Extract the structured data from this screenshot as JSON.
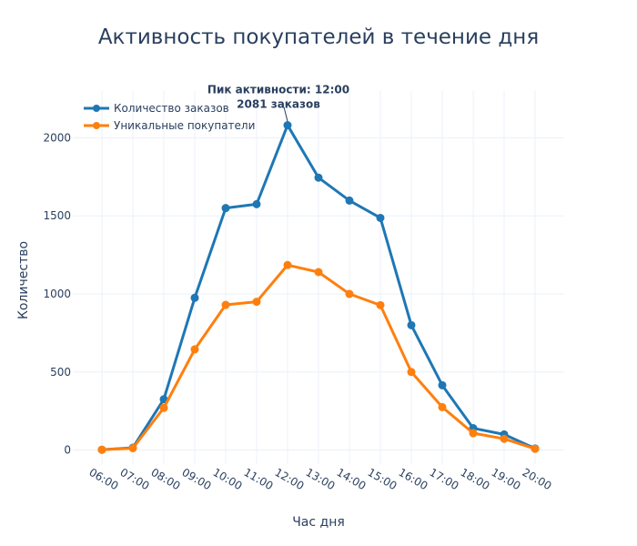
{
  "chart_data": {
    "type": "line",
    "title": "Активность покупателей в течение дня",
    "xlabel": "Час дня",
    "ylabel": "Количество",
    "categories": [
      "06:00",
      "07:00",
      "08:00",
      "09:00",
      "10:00",
      "11:00",
      "12:00",
      "13:00",
      "14:00",
      "15:00",
      "16:00",
      "17:00",
      "18:00",
      "19:00",
      "20:00"
    ],
    "ylim": [
      -90,
      2300
    ],
    "yticks": [
      0,
      500,
      1000,
      1500,
      2000
    ],
    "grid": true,
    "legend_position": "top-left",
    "series": [
      {
        "name": "Количество заказов",
        "color": "#1f77b4",
        "values": [
          2,
          15,
          325,
          975,
          1550,
          1575,
          2081,
          1745,
          1598,
          1487,
          800,
          415,
          140,
          100,
          10
        ]
      },
      {
        "name": "Уникальные покупатели",
        "color": "#ff7f0e",
        "values": [
          2,
          12,
          270,
          645,
          930,
          950,
          1185,
          1140,
          1000,
          928,
          500,
          275,
          108,
          72,
          8
        ]
      }
    ],
    "annotation": {
      "category": "12:00",
      "value": 2081,
      "line1": "Пик активности: 12:00",
      "line2": "2081 заказов"
    }
  }
}
